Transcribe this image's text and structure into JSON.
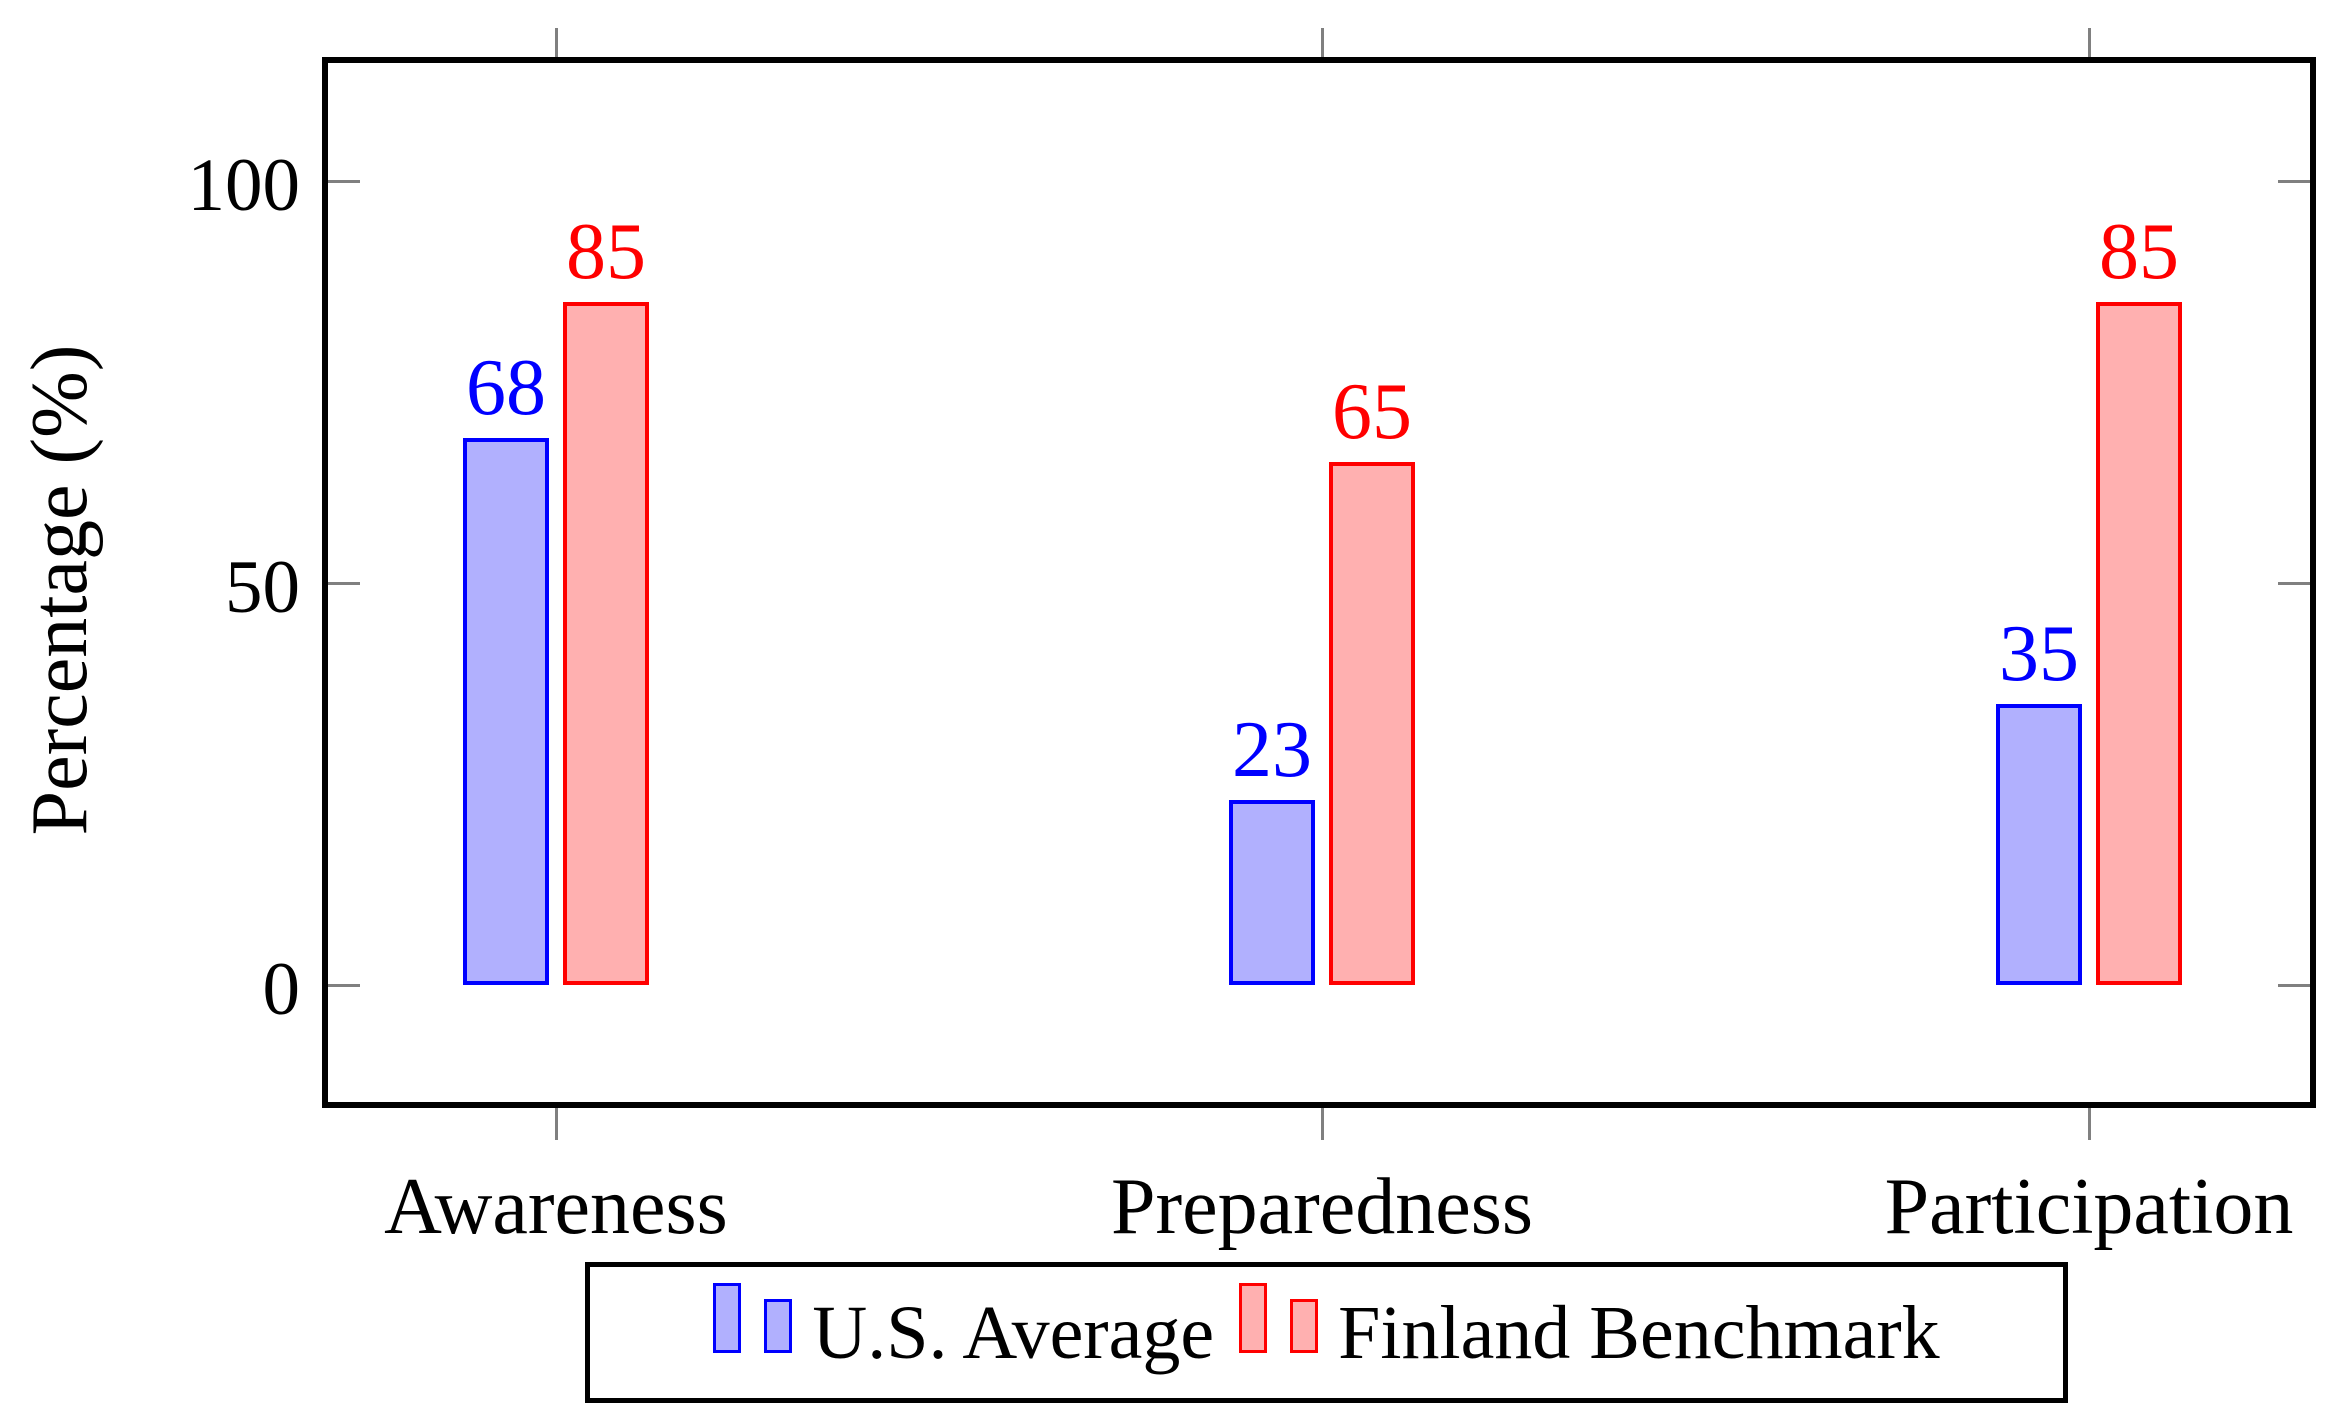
{
  "chart_data": {
    "type": "bar",
    "title": "",
    "categories": [
      "Awareness",
      "Preparedness",
      "Participation"
    ],
    "series": [
      {
        "name": "U.S. Average",
        "values": [
          68,
          23,
          35
        ],
        "fill": "#b1b0fe",
        "stroke": "#0000ff"
      },
      {
        "name": "Finland Benchmark",
        "values": [
          85,
          65,
          85
        ],
        "fill": "#ffb0b0",
        "stroke": "#ff0000"
      }
    ],
    "xlabel": "",
    "ylabel": "Percentage (%)",
    "yticks": [
      0,
      50,
      100
    ],
    "ylim": [
      -15,
      115
    ],
    "bar_value_labels": true,
    "grid": false,
    "legend": {
      "position": "bottom-outside",
      "border": true
    },
    "colors": {
      "tick": "#808080",
      "frame": "#000000",
      "background": "#ffffff",
      "text": "#000000"
    }
  }
}
